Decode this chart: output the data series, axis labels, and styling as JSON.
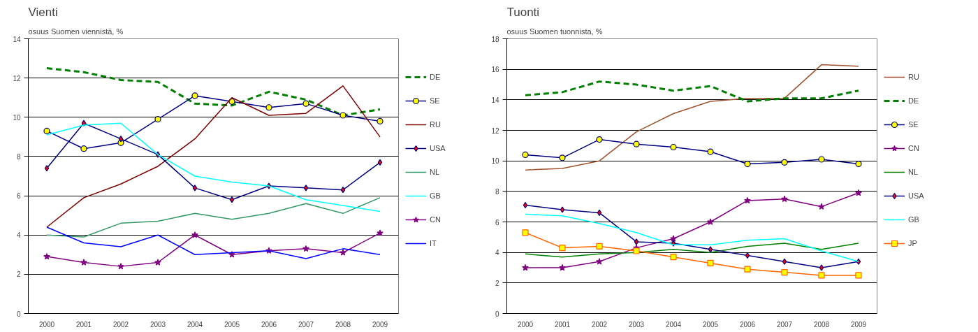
{
  "chart_data": [
    {
      "type": "line",
      "title": "Vienti",
      "subtitle": "osuus Suomen viennistä, %",
      "categories": [
        "2000",
        "2001",
        "2002",
        "2003",
        "2004",
        "2005",
        "2006",
        "2007",
        "2008",
        "2009"
      ],
      "ylim": [
        0,
        14
      ],
      "yticks": [
        0,
        2,
        4,
        6,
        8,
        10,
        12,
        14
      ],
      "grid": "y",
      "legend": "right",
      "series": [
        {
          "name": "DE",
          "color": "#008000",
          "line_style": "dashed",
          "marker": "none",
          "values": [
            12.5,
            12.3,
            11.9,
            11.8,
            10.7,
            10.6,
            11.3,
            10.9,
            10.1,
            10.4
          ]
        },
        {
          "name": "SE",
          "color": "#000080",
          "marker": "circle",
          "values": [
            9.3,
            8.4,
            8.7,
            9.9,
            11.1,
            10.8,
            10.5,
            10.7,
            10.1,
            9.8
          ]
        },
        {
          "name": "RU",
          "color": "#800000",
          "marker": "none",
          "values": [
            4.4,
            5.9,
            6.6,
            7.5,
            8.9,
            11.0,
            10.1,
            10.2,
            11.6,
            9.0
          ]
        },
        {
          "name": "USA",
          "color": "#000080",
          "marker": "diamond",
          "values": [
            7.4,
            9.7,
            8.9,
            8.1,
            6.4,
            5.8,
            6.5,
            6.4,
            6.3,
            7.7
          ]
        },
        {
          "name": "NL",
          "color": "#339966",
          "marker": "none",
          "values": [
            4.0,
            3.9,
            4.6,
            4.7,
            5.1,
            4.8,
            5.1,
            5.6,
            5.1,
            5.9
          ]
        },
        {
          "name": "GB",
          "color": "#00ffff",
          "marker": "none",
          "values": [
            9.1,
            9.6,
            9.7,
            8.1,
            7.0,
            6.7,
            6.5,
            5.8,
            5.5,
            5.2
          ]
        },
        {
          "name": "CN",
          "color": "#800080",
          "marker": "star",
          "values": [
            2.9,
            2.6,
            2.4,
            2.6,
            4.0,
            3.0,
            3.2,
            3.3,
            3.1,
            4.1
          ]
        },
        {
          "name": "IT",
          "color": "#0000ff",
          "marker": "none",
          "values": [
            4.4,
            3.6,
            3.4,
            4.0,
            3.0,
            3.1,
            3.2,
            2.8,
            3.3,
            3.0
          ]
        }
      ]
    },
    {
      "type": "line",
      "title": "Tuonti",
      "subtitle": "osuus Suomen tuonnista, %",
      "categories": [
        "2000",
        "2001",
        "2002",
        "2003",
        "2004",
        "2005",
        "2006",
        "2007",
        "2008",
        "2009"
      ],
      "ylim": [
        0,
        18
      ],
      "yticks": [
        0,
        2,
        4,
        6,
        8,
        10,
        12,
        14,
        16,
        18
      ],
      "grid": "y",
      "legend": "right",
      "series": [
        {
          "name": "RU",
          "color": "#a0522d",
          "marker": "none",
          "values": [
            9.4,
            9.5,
            10.0,
            11.9,
            13.1,
            13.9,
            14.1,
            14.1,
            16.3,
            16.2
          ]
        },
        {
          "name": "DE",
          "color": "#008000",
          "line_style": "dashed",
          "marker": "none",
          "values": [
            14.3,
            14.5,
            15.2,
            15.0,
            14.6,
            14.9,
            13.9,
            14.1,
            14.1,
            14.6
          ]
        },
        {
          "name": "SE",
          "color": "#000080",
          "marker": "circle",
          "values": [
            10.4,
            10.2,
            11.4,
            11.1,
            10.9,
            10.6,
            9.8,
            9.9,
            10.1,
            9.8
          ]
        },
        {
          "name": "CN",
          "color": "#800080",
          "marker": "star",
          "values": [
            3.0,
            3.0,
            3.4,
            4.3,
            4.9,
            6.0,
            7.4,
            7.5,
            7.0,
            7.9
          ]
        },
        {
          "name": "NL",
          "color": "#008000",
          "marker": "none",
          "values": [
            3.9,
            3.7,
            3.9,
            4.0,
            4.2,
            4.0,
            4.4,
            4.6,
            4.2,
            4.6
          ]
        },
        {
          "name": "USA",
          "color": "#000080",
          "marker": "diamond",
          "values": [
            7.1,
            6.8,
            6.6,
            4.7,
            4.6,
            4.2,
            3.8,
            3.4,
            3.0,
            3.4
          ]
        },
        {
          "name": "GB",
          "color": "#00ffff",
          "marker": "none",
          "values": [
            6.5,
            6.4,
            5.9,
            5.3,
            4.5,
            4.5,
            4.8,
            4.9,
            4.1,
            3.4
          ]
        },
        {
          "name": "JP",
          "color": "#ff6600",
          "marker": "square",
          "values": [
            5.3,
            4.3,
            4.4,
            4.1,
            3.7,
            3.3,
            2.9,
            2.7,
            2.5,
            2.5
          ]
        }
      ]
    }
  ]
}
